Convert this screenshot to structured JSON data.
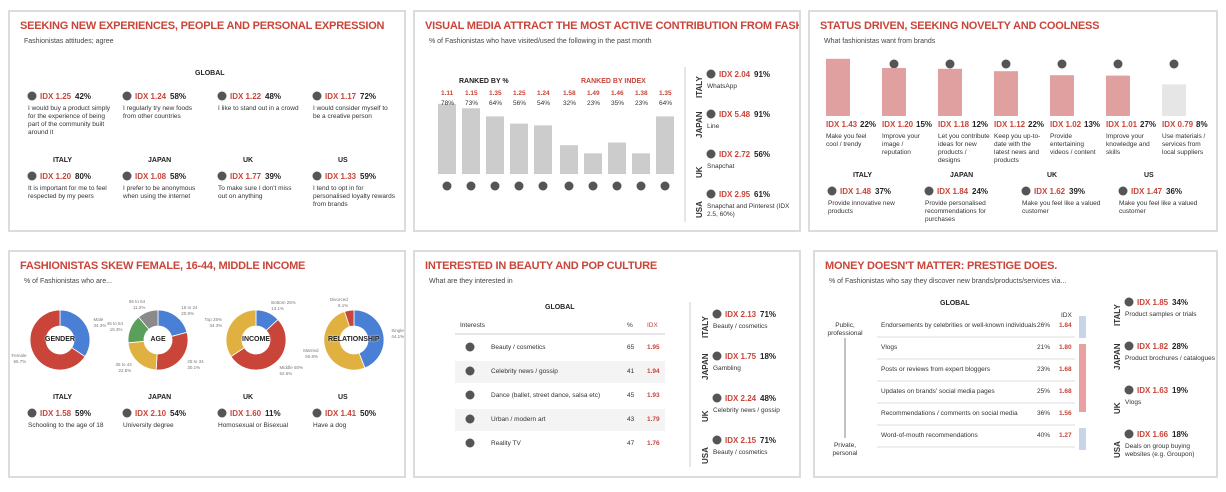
{
  "panels": [
    {
      "title": "SEEKING NEW EXPERIENCES, PEOPLE AND PERSONAL EXPRESSION",
      "subtitle": "Fashionistas attitudes; agree",
      "global_label": "GLOBAL",
      "global": [
        {
          "idx": "IDX 1.25",
          "pct": "42%",
          "text": "I would buy a product simply for the experience of being part of the community built around it"
        },
        {
          "idx": "IDX 1.24",
          "pct": "58%",
          "text": "I regularly try new foods from other countries"
        },
        {
          "idx": "IDX 1.22",
          "pct": "48%",
          "text": "I like to stand out in a crowd"
        },
        {
          "idx": "IDX 1.17",
          "pct": "72%",
          "text": "I would consider myself to be a creative person"
        }
      ],
      "countries": [
        {
          "name": "ITALY",
          "idx": "IDX 1.20",
          "pct": "80%",
          "text": "It is important for me to feel respected by my peers"
        },
        {
          "name": "JAPAN",
          "idx": "IDX 1.08",
          "pct": "58%",
          "text": "I prefer to be anonymous when using the internet"
        },
        {
          "name": "UK",
          "idx": "IDX 1.77",
          "pct": "39%",
          "text": "To make sure I don't miss out on anything"
        },
        {
          "name": "US",
          "idx": "IDX 1.33",
          "pct": "59%",
          "text": "I tend to opt in for personalised loyalty rewards from brands"
        }
      ]
    },
    {
      "title": "VISUAL MEDIA ATTRACT THE MOST ACTIVE CONTRIBUTION FROM FASHIONISTAS",
      "subtitle": "% of Fashionistas who have visited/used the following in the past month",
      "groups": [
        {
          "label": "RANKED BY %",
          "indices": [
            1.11,
            1.15,
            1.35,
            1.25,
            1.24
          ],
          "values": [
            78,
            73,
            64,
            56,
            54
          ],
          "value_labels": [
            "78%",
            "73%",
            "64%",
            "56%",
            "54%"
          ],
          "color": "#cccccc"
        },
        {
          "label": "RANKED BY INDEX",
          "indices": [
            1.58,
            1.49,
            1.46,
            1.38,
            1.35
          ],
          "values": [
            32,
            23,
            35,
            23,
            64
          ],
          "value_labels": [
            "32%",
            "23%",
            "35%",
            "23%",
            "64%"
          ],
          "color": "#cccccc"
        }
      ],
      "countries": [
        {
          "name": "ITALY",
          "idx": "IDX 2.04",
          "pct": "91%",
          "text": "WhatsApp"
        },
        {
          "name": "JAPAN",
          "idx": "IDX 5.48",
          "pct": "91%",
          "text": "Line"
        },
        {
          "name": "UK",
          "idx": "IDX 2.72",
          "pct": "56%",
          "text": "Snapchat"
        },
        {
          "name": "USA",
          "idx": "IDX 2.95",
          "pct": "61%",
          "text": "Snapchat and Pinterest (IDX 2.5, 60%)"
        }
      ]
    },
    {
      "title": "STATUS DRIVEN, SEEKING NOVELTY AND COOLNESS",
      "subtitle": "What fashionistas want from brands",
      "bars": {
        "indices": [
          1.43,
          1.2,
          1.18,
          1.12,
          1.02,
          1.01,
          0.79
        ],
        "index_labels": [
          "IDX 1.43",
          "IDX 1.20",
          "IDX 1.18",
          "IDX 1.12",
          "IDX 1.02",
          "IDX 1.01",
          "IDX 0.79"
        ],
        "pcts": [
          "22%",
          "15%",
          "12%",
          "22%",
          "13%",
          "27%",
          "8%"
        ],
        "labels": [
          "Make you feel cool / trendy",
          "Improve your image / reputation",
          "Let you contribute ideas for new products / designs",
          "Keep you up-to-date with the latest news and products",
          "Provide entertaining videos / content",
          "Improve your knowledge and skills",
          "Use materials / services from local suppliers"
        ],
        "colors": [
          "#e0a0a0",
          "#e0a0a0",
          "#e0a0a0",
          "#e0a0a0",
          "#e0a0a0",
          "#e0a0a0",
          "#e6e6e6"
        ]
      },
      "countries": [
        {
          "name": "ITALY",
          "idx": "IDX 1.48",
          "pct": "37%",
          "text": "Provide innovative new products"
        },
        {
          "name": "JAPAN",
          "idx": "IDX 1.84",
          "pct": "24%",
          "text": "Provide personalised recommendations for purchases"
        },
        {
          "name": "UK",
          "idx": "IDX 1.62",
          "pct": "39%",
          "text": "Make you feel like a valued customer"
        },
        {
          "name": "US",
          "idx": "IDX 1.47",
          "pct": "36%",
          "text": "Make you feel like a valued customer"
        }
      ]
    },
    {
      "title": "FASHIONISTAS SKEW FEMALE, 16-44, MIDDLE INCOME",
      "subtitle": "% of Fashionistas who are...",
      "donuts": [
        {
          "label": "GENDER",
          "segments": [
            {
              "name": "Male",
              "value": 34.3,
              "value_label": "34.3%",
              "color": "#4a7fd6"
            },
            {
              "name": "Female",
              "value": 65.7,
              "value_label": "65.7%",
              "color": "#c9453a"
            }
          ]
        },
        {
          "label": "AGE",
          "segments": [
            {
              "name": "16 to 24",
              "value": 20.9,
              "value_label": "20.9%",
              "color": "#4a7fd6"
            },
            {
              "name": "25 to 34",
              "value": 30.1,
              "value_label": "30.1%",
              "color": "#c9453a"
            },
            {
              "name": "35 to 44",
              "value": 22.5,
              "value_label": "22.5%",
              "color": "#e0b040"
            },
            {
              "name": "45 to 54",
              "value": 15.3,
              "value_label": "15.3%",
              "color": "#5aa05a"
            },
            {
              "name": "55 to 64",
              "value": 11.2,
              "value_label": "11.2%",
              "color": "#8a8a8a"
            }
          ]
        },
        {
          "label": "INCOME",
          "segments": [
            {
              "name": "Bottom 25%",
              "value": 13.1,
              "value_label": "13.1%",
              "color": "#4a7fd6"
            },
            {
              "name": "Middle 50%",
              "value": 52.6,
              "value_label": "52.6%",
              "color": "#c9453a"
            },
            {
              "name": "Top 25%",
              "value": 34.3,
              "value_label": "34.3%",
              "color": "#e0b040"
            }
          ]
        },
        {
          "label": "RELATIONSHIP",
          "segments": [
            {
              "name": "Single",
              "value": 44.1,
              "value_label": "44.1%",
              "color": "#4a7fd6"
            },
            {
              "name": "Married",
              "value": 50.8,
              "value_label": "50.8%",
              "color": "#e0b040"
            },
            {
              "name": "Divorced",
              "value": 5.1,
              "value_label": "5.1%",
              "color": "#c9453a"
            }
          ]
        }
      ],
      "countries": [
        {
          "name": "ITALY",
          "idx": "IDX 1.58",
          "pct": "59%",
          "text": "Schooling to the age of 18"
        },
        {
          "name": "JAPAN",
          "idx": "IDX 2.10",
          "pct": "54%",
          "text": "University degree"
        },
        {
          "name": "UK",
          "idx": "IDX 1.60",
          "pct": "11%",
          "text": "Homosexual or Bisexual"
        },
        {
          "name": "US",
          "idx": "IDX 1.41",
          "pct": "50%",
          "text": "Have a dog"
        }
      ]
    },
    {
      "title": "INTERESTED IN BEAUTY AND POP CULTURE",
      "subtitle": "What are they interested in",
      "global_label": "GLOBAL",
      "columns": [
        "Interests",
        "%",
        "IDX"
      ],
      "rows": [
        [
          "Beauty / cosmetics",
          65,
          1.95
        ],
        [
          "Celebrity news / gossip",
          41,
          1.94
        ],
        [
          "Dance (ballet, street dance, salsa etc)",
          45,
          1.93
        ],
        [
          "Urban / modern art",
          43,
          1.79
        ],
        [
          "Reality TV",
          47,
          1.76
        ]
      ],
      "countries": [
        {
          "name": "ITALY",
          "idx": "IDX 2.13",
          "pct": "71%",
          "text": "Beauty / cosmetics"
        },
        {
          "name": "JAPAN",
          "idx": "IDX 1.75",
          "pct": "18%",
          "text": "Gambling"
        },
        {
          "name": "UK",
          "idx": "IDX 2.24",
          "pct": "48%",
          "text": "Celebrity news / gossip"
        },
        {
          "name": "USA",
          "idx": "IDX 2.15",
          "pct": "71%",
          "text": "Beauty / cosmetics"
        }
      ]
    },
    {
      "title": "MONEY DOESN'T MATTER: PRESTIGE DOES.",
      "subtitle": "% of Fashionistas who say they discover new brands/products/services via...",
      "global_label": "GLOBAL",
      "idx_header": "IDX",
      "axis_top": "Public, professional",
      "axis_bottom": "Private, personal",
      "rows": [
        {
          "text": "Endorsements by celebrities or well-known individuals",
          "pct": "26%",
          "idx": "1.84"
        },
        {
          "text": "Vlogs",
          "pct": "21%",
          "idx": "1.80"
        },
        {
          "text": "Posts or reviews from expert bloggers",
          "pct": "23%",
          "idx": "1.68"
        },
        {
          "text": "Updates on brands' social media pages",
          "pct": "25%",
          "idx": "1.68"
        },
        {
          "text": "Recommendations / comments on social media",
          "pct": "36%",
          "idx": "1.56"
        },
        {
          "text": "Word-of-mouth recommendations",
          "pct": "40%",
          "idx": "1.27"
        }
      ],
      "countries": [
        {
          "name": "ITALY",
          "idx": "IDX 1.85",
          "pct": "34%",
          "text": "Product samples or trials"
        },
        {
          "name": "JAPAN",
          "idx": "IDX 1.82",
          "pct": "28%",
          "text": "Product brochures / catalogues"
        },
        {
          "name": "UK",
          "idx": "IDX 1.63",
          "pct": "19%",
          "text": "Vlogs"
        },
        {
          "name": "USA",
          "idx": "IDX 1.66",
          "pct": "18%",
          "text": "Deals on group buying websites (e.g. Groupon)"
        }
      ]
    }
  ]
}
